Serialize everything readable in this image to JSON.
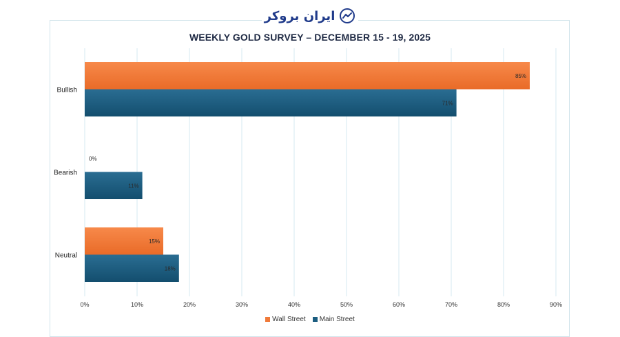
{
  "logo": {
    "text": "ایران بروکر",
    "icon": "trend-chart-icon"
  },
  "chart_data": {
    "type": "bar",
    "orientation": "horizontal",
    "title": "WEEKLY GOLD SURVEY – DECEMBER 15 - 19, 2025",
    "categories": [
      "Bullish",
      "Bearish",
      "Neutral"
    ],
    "series": [
      {
        "name": "Wall Street",
        "color": "#f07a3a",
        "values": [
          85,
          0,
          15
        ],
        "labels": [
          "85%",
          "0%",
          "15%"
        ]
      },
      {
        "name": "Main Street",
        "color": "#1b5d80",
        "values": [
          71,
          11,
          18
        ],
        "labels": [
          "71%",
          "11%",
          "18%"
        ]
      }
    ],
    "xlim": [
      0,
      90
    ],
    "xticks": [
      0,
      10,
      20,
      30,
      40,
      50,
      60,
      70,
      80,
      90
    ],
    "xtick_labels": [
      "0%",
      "10%",
      "20%",
      "30%",
      "40%",
      "50%",
      "60%",
      "70%",
      "80%",
      "90%"
    ],
    "grid": true,
    "legend_position": "bottom"
  }
}
